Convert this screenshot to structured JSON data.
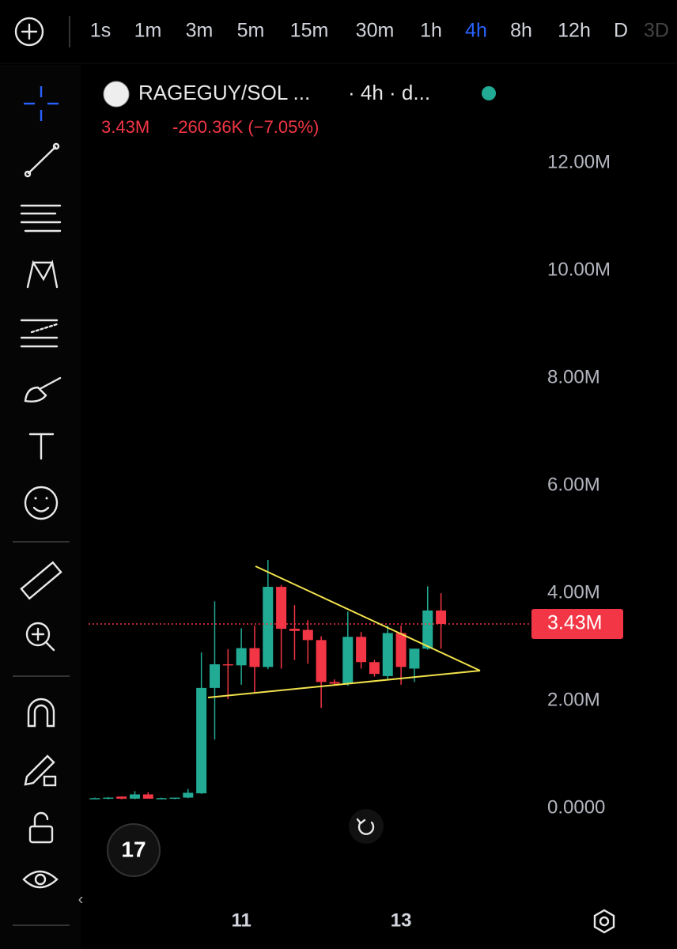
{
  "toolbar": {
    "intervals": [
      "1s",
      "1m",
      "3m",
      "5m",
      "15m",
      "30m",
      "1h",
      "4h",
      "8h",
      "12h",
      "D",
      "3D"
    ],
    "active_index": 7
  },
  "chart_data": {
    "type": "candlestick",
    "title": "RAGEGUY/SOL ...",
    "subtitle": "· 4h · d...",
    "legend_values": [
      "3.43M",
      "-260.36K (−7.05%)"
    ],
    "categories": [
      null,
      null,
      null,
      null,
      null,
      null,
      null,
      null,
      null,
      null,
      null,
      "11",
      null,
      null,
      null,
      null,
      null,
      null,
      null,
      null,
      null,
      null,
      null,
      "13",
      null,
      null,
      null
    ],
    "ohlc": [
      [
        0.18,
        0.2,
        0.17,
        0.19
      ],
      [
        0.18,
        0.21,
        0.17,
        0.2
      ],
      [
        0.22,
        0.22,
        0.17,
        0.18
      ],
      [
        0.18,
        0.32,
        0.17,
        0.26
      ],
      [
        0.26,
        0.3,
        0.18,
        0.18
      ],
      [
        0.18,
        0.2,
        0.17,
        0.19
      ],
      [
        0.19,
        0.2,
        0.17,
        0.2
      ],
      [
        0.2,
        0.36,
        0.19,
        0.29
      ],
      [
        0.28,
        2.9,
        0.27,
        2.24
      ],
      [
        2.24,
        3.85,
        1.28,
        2.68
      ],
      [
        2.68,
        2.96,
        2.03,
        2.66
      ],
      [
        2.66,
        3.35,
        2.3,
        2.98
      ],
      [
        2.98,
        3.4,
        2.16,
        2.63
      ],
      [
        2.63,
        4.62,
        2.59,
        4.12
      ],
      [
        4.12,
        4.15,
        2.6,
        3.34
      ],
      [
        3.34,
        3.78,
        2.76,
        3.3
      ],
      [
        3.32,
        3.5,
        2.69,
        3.13
      ],
      [
        3.13,
        3.2,
        1.87,
        2.35
      ],
      [
        2.35,
        2.4,
        2.28,
        2.32
      ],
      [
        2.32,
        3.66,
        2.28,
        3.19
      ],
      [
        3.19,
        3.28,
        2.6,
        2.72
      ],
      [
        2.72,
        2.76,
        2.45,
        2.5
      ],
      [
        2.46,
        3.4,
        2.4,
        3.26
      ],
      [
        3.26,
        3.4,
        2.3,
        2.63
      ],
      [
        2.6,
        2.97,
        2.35,
        2.97
      ],
      [
        2.97,
        4.13,
        2.95,
        3.68
      ],
      [
        3.68,
        4.0,
        2.97,
        3.43
      ]
    ],
    "up_color": "#22ab94",
    "down_color": "#f23645",
    "last_price": {
      "value": 3.43,
      "label": "3.43M"
    },
    "ylim": [
      -1.88,
      13.71
    ],
    "yticks": [
      {
        "value": 0,
        "label": "0.0000"
      },
      {
        "value": 2,
        "label": "2.00M"
      },
      {
        "value": 4,
        "label": "4.00M"
      },
      {
        "value": 6,
        "label": "6.00M"
      },
      {
        "value": 8,
        "label": "8.00M"
      },
      {
        "value": 10,
        "label": "10.00M"
      },
      {
        "value": 12,
        "label": "12.00M"
      }
    ]
  }
}
